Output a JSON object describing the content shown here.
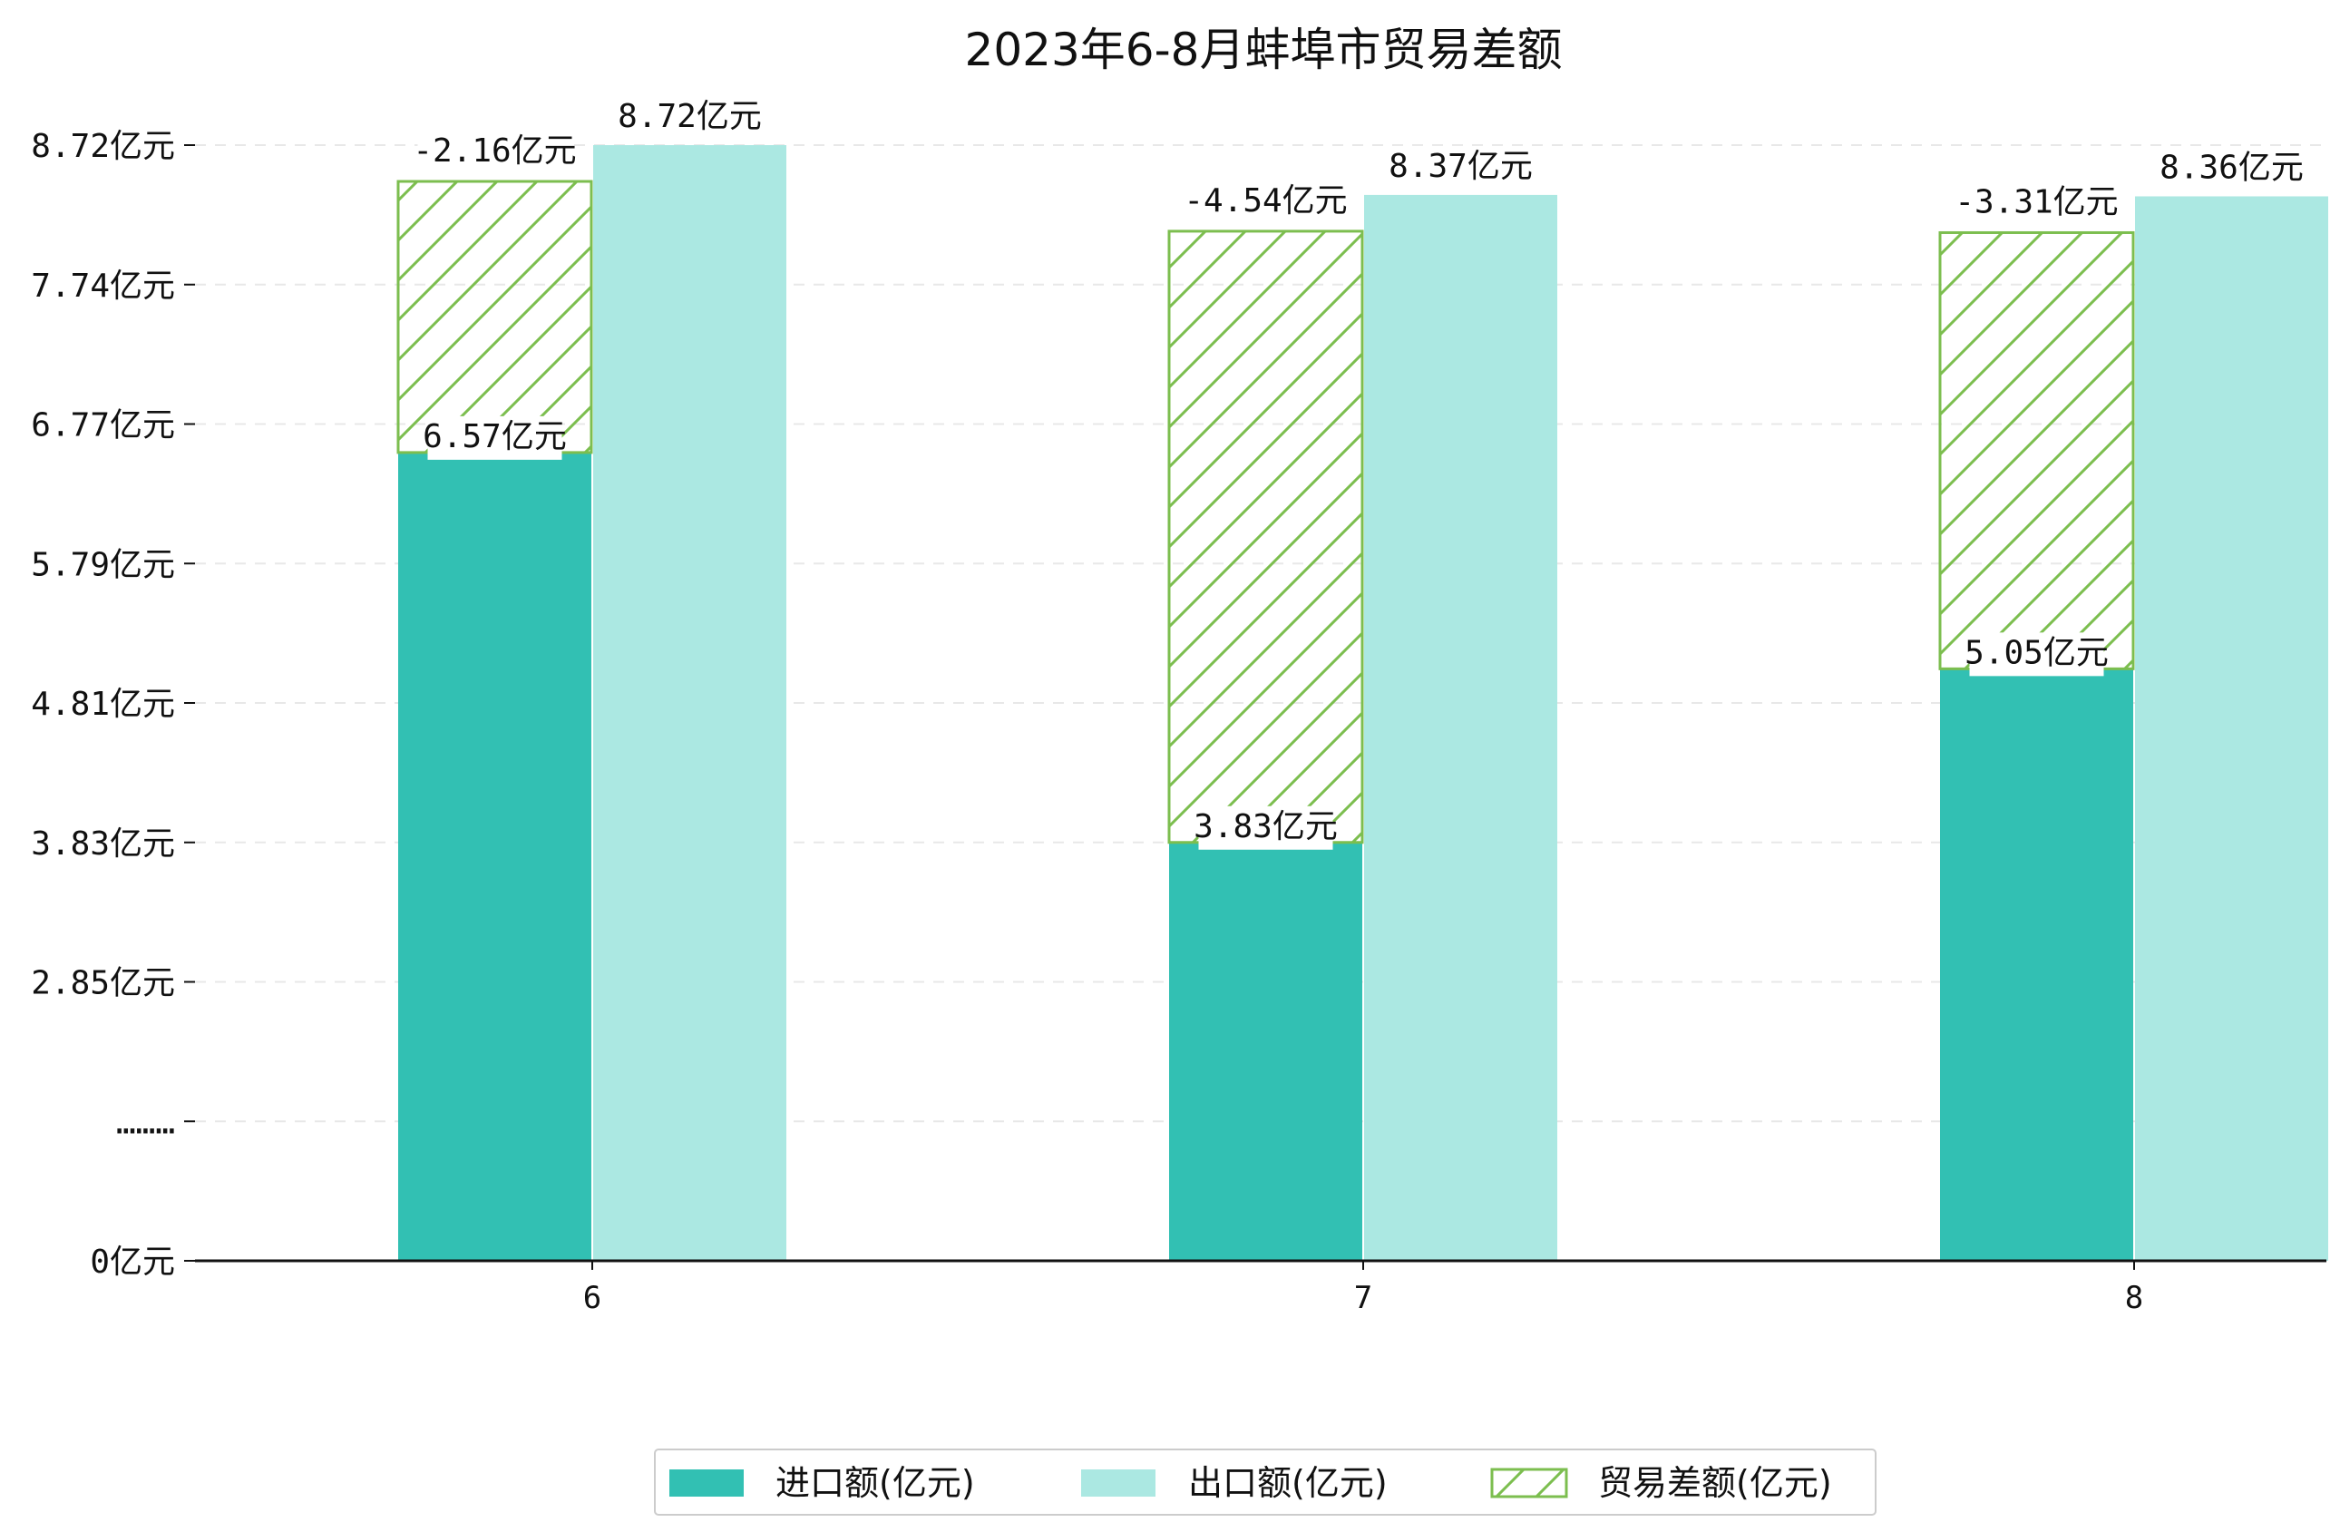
{
  "chart_data": {
    "type": "bar",
    "title": "2023年6-8月蚌埠市贸易差额",
    "xlabel": "",
    "ylabel": "",
    "categories": [
      "6",
      "7",
      "8"
    ],
    "series": [
      {
        "name": "进口额(亿元)",
        "values": [
          6.57,
          3.83,
          5.05
        ],
        "labels": [
          "6.57亿元",
          "3.83亿元",
          "5.05亿元"
        ],
        "color": "#32c0b3"
      },
      {
        "name": "出口额(亿元)",
        "values": [
          8.72,
          8.37,
          8.36
        ],
        "labels": [
          "8.72亿元",
          "8.37亿元",
          "8.36亿元"
        ],
        "color": "#abe8e2"
      },
      {
        "name": "贸易差额(亿元)",
        "values": [
          -2.16,
          -4.54,
          -3.31
        ],
        "labels": [
          "-2.16亿元",
          "-4.54亿元",
          "-3.31亿元"
        ],
        "color": "#7cbe4f",
        "pattern": "hatch"
      }
    ],
    "y_ticks": [
      "0亿元",
      "………",
      "2.85亿元",
      "3.83亿元",
      "4.81亿元",
      "5.79亿元",
      "6.77亿元",
      "7.74亿元",
      "8.72亿元"
    ],
    "axis_break": true,
    "grid": "horizontal-dashed",
    "legend_position": "bottom-center"
  }
}
